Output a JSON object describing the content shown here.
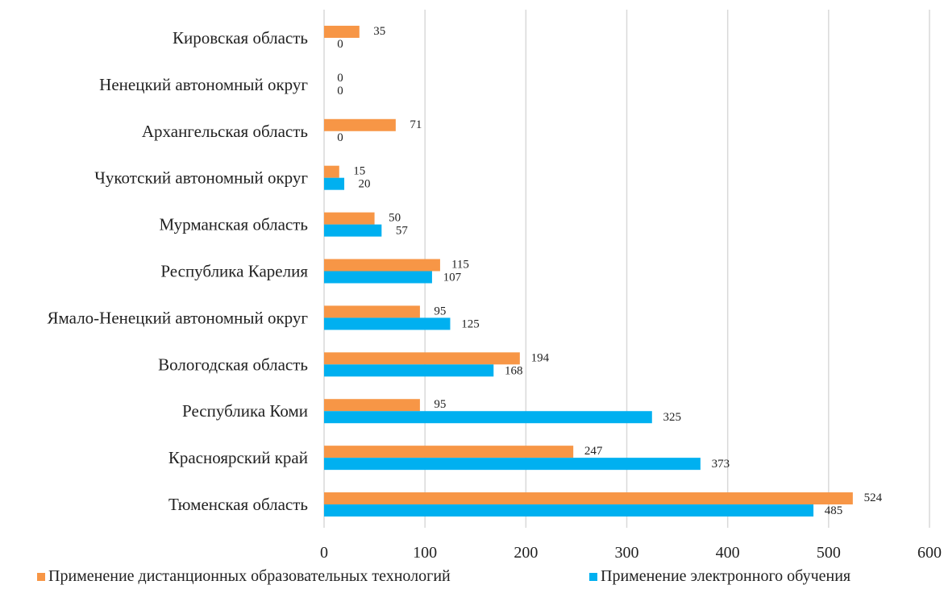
{
  "chart_data": {
    "type": "bar",
    "orientation": "horizontal",
    "categories": [
      "Кировская область",
      "Ненецкий автономный округ",
      "Архангельская область",
      "Чукотский автономный округ",
      "Мурманская область",
      "Республика Карелия",
      "Ямало-Ненецкий автономный округ",
      "Вологодская область",
      "Республика Коми",
      "Красноярский край",
      "Тюменская область"
    ],
    "series": [
      {
        "name": "Применение дистанционных образовательных технологий",
        "color": "#F79646",
        "values": [
          35,
          0,
          71,
          15,
          50,
          115,
          95,
          194,
          95,
          247,
          524
        ]
      },
      {
        "name": "Применение электронного обучения",
        "color": "#00B0F0",
        "values": [
          0,
          0,
          0,
          20,
          57,
          107,
          125,
          168,
          325,
          373,
          485
        ]
      }
    ],
    "xlim": [
      0,
      600
    ],
    "x_ticks": [
      "0",
      "100",
      "200",
      "300",
      "400",
      "500",
      "600"
    ],
    "grid": true,
    "legend_position": "bottom"
  }
}
